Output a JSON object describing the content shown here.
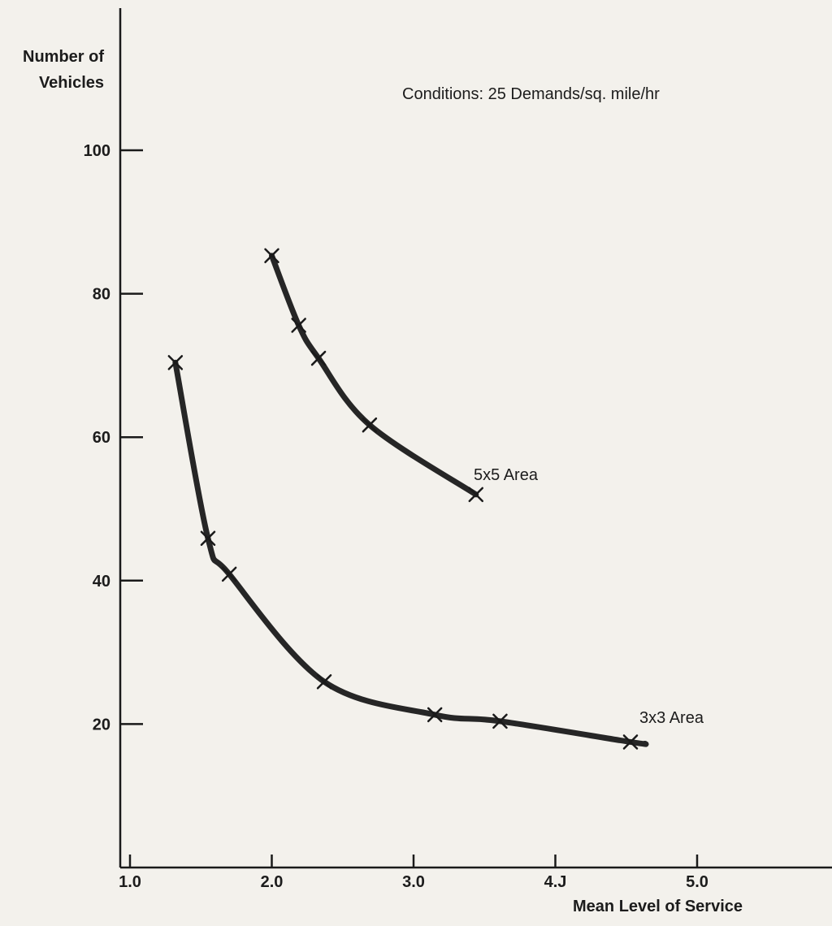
{
  "chart_data": {
    "type": "line",
    "title": "",
    "annotation": "Conditions: 25 Demands/sq. mile/hr",
    "xlabel": "Mean Level of Service",
    "ylabel": [
      "Number of",
      "Vehicles"
    ],
    "xlim": [
      1.0,
      5.8
    ],
    "ylim": [
      0,
      110
    ],
    "xticks": [
      1.0,
      2.0,
      3.0,
      4.0,
      5.0
    ],
    "xtick_labels": [
      "1.0",
      "2.0",
      "3.0",
      "4.J",
      "5.0"
    ],
    "yticks": [
      20,
      40,
      60,
      80,
      100
    ],
    "ytick_labels": [
      "20",
      "40",
      "60",
      "80",
      "100"
    ],
    "grid": false,
    "marker": "x",
    "series": [
      {
        "name": "5x5 Area",
        "x": [
          2.0,
          2.19,
          2.33,
          2.69,
          3.44
        ],
        "y": [
          85.3,
          75.6,
          71.0,
          61.7,
          52.0
        ]
      },
      {
        "name": "3x3 Area",
        "x": [
          1.32,
          1.55,
          1.7,
          2.37,
          3.15,
          3.61,
          4.53
        ],
        "y": [
          70.4,
          45.9,
          40.9,
          25.9,
          21.3,
          20.4,
          17.5
        ]
      }
    ]
  }
}
